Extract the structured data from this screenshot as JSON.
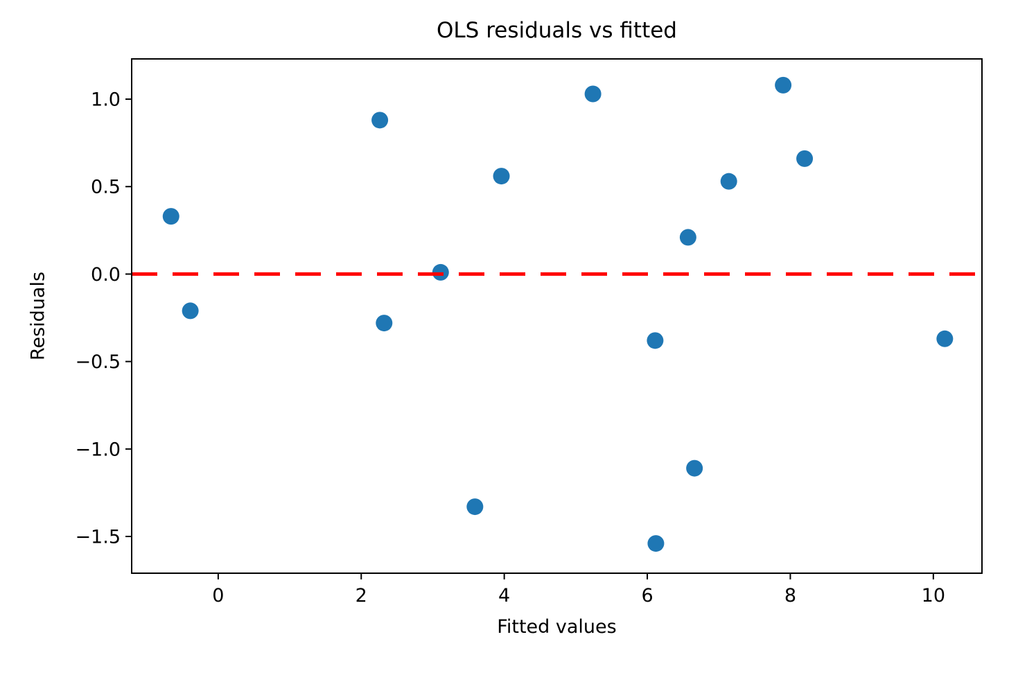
{
  "figure": {
    "background": "#ffffff"
  },
  "chart_data": {
    "type": "scatter",
    "title": "OLS residuals vs fitted",
    "xlabel": "Fitted values",
    "ylabel": "Residuals",
    "xlim": [
      -1.21,
      10.68
    ],
    "ylim": [
      -1.71,
      1.23
    ],
    "x_ticks": [
      0,
      2,
      4,
      6,
      8,
      10
    ],
    "x_tick_labels": [
      "0",
      "2",
      "4",
      "6",
      "8",
      "10"
    ],
    "y_ticks": [
      1.0,
      0.5,
      0.0,
      -0.5,
      -1.0,
      -1.5
    ],
    "y_tick_labels": [
      "1.0",
      "0.5",
      "0.0",
      "−0.5",
      "−1.0",
      "−1.5"
    ],
    "grid": false,
    "legend": null,
    "marker_color": "#1f77b4",
    "marker_radius_px": 12,
    "frame_color": "#000000",
    "reference_line": {
      "y": 0.0,
      "style": "dashed",
      "color": "#ff0000"
    },
    "points": [
      [
        -0.66,
        0.33
      ],
      [
        -0.39,
        -0.21
      ],
      [
        2.26,
        0.88
      ],
      [
        2.32,
        -0.28
      ],
      [
        3.11,
        0.01
      ],
      [
        3.59,
        -1.33
      ],
      [
        3.96,
        0.56
      ],
      [
        5.24,
        1.03
      ],
      [
        6.11,
        -0.38
      ],
      [
        6.12,
        -1.54
      ],
      [
        6.57,
        0.21
      ],
      [
        6.66,
        -1.11
      ],
      [
        7.14,
        0.53
      ],
      [
        7.9,
        1.08
      ],
      [
        8.2,
        0.66
      ],
      [
        10.16,
        -0.37
      ]
    ]
  }
}
